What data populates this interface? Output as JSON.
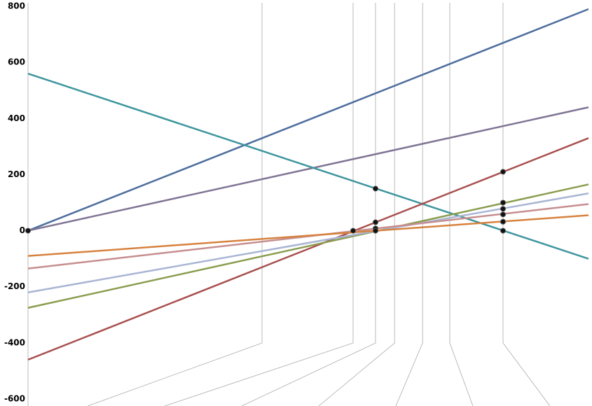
{
  "chart_data": {
    "type": "line",
    "xlim": [
      0,
      100
    ],
    "ylim": [
      -600,
      800
    ],
    "yticks": [
      800,
      600,
      400,
      200,
      0,
      -200,
      -400,
      -600
    ],
    "x": [
      0,
      100
    ],
    "series": [
      {
        "color": "#4e6e9e",
        "values": [
          0,
          790
        ]
      },
      {
        "color": "#807595",
        "values": [
          0,
          440
        ]
      },
      {
        "color": "#3f969e",
        "values": [
          560,
          -100
        ]
      },
      {
        "color": "#a8504f",
        "values": [
          -460,
          330
        ]
      },
      {
        "color": "#8a9d4f",
        "values": [
          -275,
          165
        ]
      },
      {
        "color": "#a9b5d4",
        "values": [
          -220,
          133
        ]
      },
      {
        "color": "#c68e8f",
        "values": [
          -135,
          95
        ]
      },
      {
        "color": "#d6823e",
        "values": [
          -90,
          55
        ]
      }
    ],
    "guides": [
      41.75,
      58,
      62,
      65.4,
      70.4,
      75.25,
      84.75
    ],
    "points": {
      "x": [
        0,
        58,
        62,
        62,
        62,
        62,
        84.75,
        84.75,
        84.75,
        84.75,
        84.75,
        84.75
      ],
      "y": [
        0,
        0,
        150,
        30,
        8,
        0,
        210,
        100,
        78,
        58,
        32,
        0
      ]
    }
  }
}
